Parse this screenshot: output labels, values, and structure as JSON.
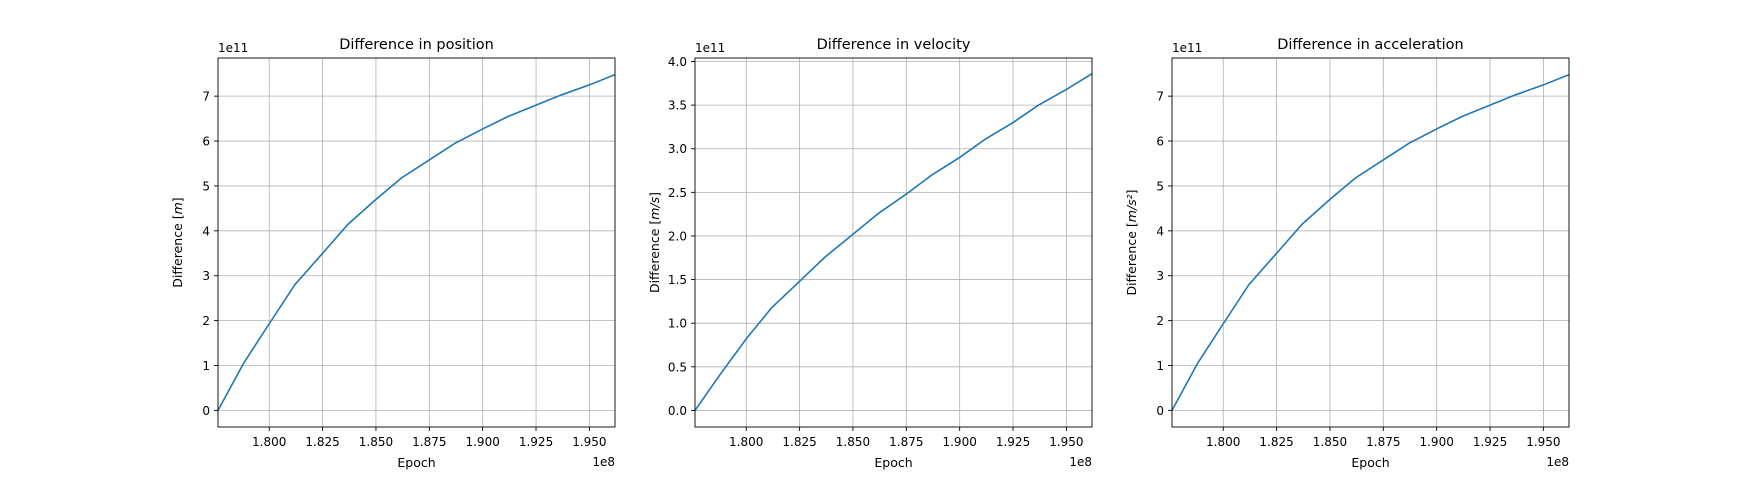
{
  "chart_data": [
    {
      "type": "line",
      "title": "Difference in position",
      "xlabel": "Epoch",
      "ylabel": "Difference [m]",
      "ylabel_unit": "m",
      "x_offset_label": "1e8",
      "y_offset_label": "1e11",
      "xlim": [
        1.776,
        1.962
      ],
      "ylim": [
        -0.37,
        7.85
      ],
      "x_ticks": [
        1.8,
        1.825,
        1.85,
        1.875,
        1.9,
        1.925,
        1.95
      ],
      "x_tick_labels": [
        "1.800",
        "1.825",
        "1.850",
        "1.875",
        "1.900",
        "1.925",
        "1.950"
      ],
      "y_ticks": [
        0,
        1,
        2,
        3,
        4,
        5,
        6,
        7
      ],
      "y_tick_labels": [
        "0",
        "1",
        "2",
        "3",
        "4",
        "5",
        "6",
        "7"
      ],
      "grid": true,
      "series": [
        {
          "color": "#1f77b4",
          "x": [
            1.776,
            1.788,
            1.8,
            1.812,
            1.825,
            1.837,
            1.85,
            1.862,
            1.875,
            1.887,
            1.9,
            1.912,
            1.925,
            1.937,
            1.95,
            1.962
          ],
          "y": [
            0.0,
            1.05,
            1.93,
            2.8,
            3.5,
            4.15,
            4.7,
            5.18,
            5.58,
            5.95,
            6.27,
            6.55,
            6.8,
            7.03,
            7.25,
            7.48
          ]
        }
      ]
    },
    {
      "type": "line",
      "title": "Difference in velocity",
      "xlabel": "Epoch",
      "ylabel": "Difference [m/s]",
      "ylabel_unit": "m/s",
      "x_offset_label": "1e8",
      "y_offset_label": "1e11",
      "xlim": [
        1.776,
        1.962
      ],
      "ylim": [
        -0.19,
        4.04
      ],
      "x_ticks": [
        1.8,
        1.825,
        1.85,
        1.875,
        1.9,
        1.925,
        1.95
      ],
      "x_tick_labels": [
        "1.800",
        "1.825",
        "1.850",
        "1.875",
        "1.900",
        "1.925",
        "1.950"
      ],
      "y_ticks": [
        0.0,
        0.5,
        1.0,
        1.5,
        2.0,
        2.5,
        3.0,
        3.5,
        4.0
      ],
      "y_tick_labels": [
        "0.0",
        "0.5",
        "1.0",
        "1.5",
        "2.0",
        "2.5",
        "3.0",
        "3.5",
        "4.0"
      ],
      "grid": true,
      "series": [
        {
          "color": "#1f77b4",
          "x": [
            1.776,
            1.788,
            1.8,
            1.812,
            1.825,
            1.837,
            1.85,
            1.862,
            1.875,
            1.887,
            1.9,
            1.912,
            1.925,
            1.937,
            1.95,
            1.962
          ],
          "y": [
            0.0,
            0.42,
            0.82,
            1.18,
            1.48,
            1.76,
            2.02,
            2.26,
            2.48,
            2.7,
            2.9,
            3.11,
            3.3,
            3.5,
            3.68,
            3.86
          ]
        }
      ]
    },
    {
      "type": "line",
      "title": "Difference in acceleration",
      "xlabel": "Epoch",
      "ylabel": "Difference [m/s²]",
      "ylabel_unit": "m/s²",
      "x_offset_label": "1e8",
      "y_offset_label": "1e11",
      "xlim": [
        1.776,
        1.962
      ],
      "ylim": [
        -0.37,
        7.85
      ],
      "x_ticks": [
        1.8,
        1.825,
        1.85,
        1.875,
        1.9,
        1.925,
        1.95
      ],
      "x_tick_labels": [
        "1.800",
        "1.825",
        "1.850",
        "1.875",
        "1.900",
        "1.925",
        "1.950"
      ],
      "y_ticks": [
        0,
        1,
        2,
        3,
        4,
        5,
        6,
        7
      ],
      "y_tick_labels": [
        "0",
        "1",
        "2",
        "3",
        "4",
        "5",
        "6",
        "7"
      ],
      "grid": true,
      "series": [
        {
          "color": "#1f77b4",
          "x": [
            1.776,
            1.788,
            1.8,
            1.812,
            1.825,
            1.837,
            1.85,
            1.862,
            1.875,
            1.887,
            1.9,
            1.912,
            1.925,
            1.937,
            1.95,
            1.962
          ],
          "y": [
            0.0,
            1.05,
            1.93,
            2.8,
            3.5,
            4.15,
            4.7,
            5.18,
            5.58,
            5.95,
            6.27,
            6.55,
            6.8,
            7.03,
            7.25,
            7.48
          ]
        }
      ]
    }
  ]
}
